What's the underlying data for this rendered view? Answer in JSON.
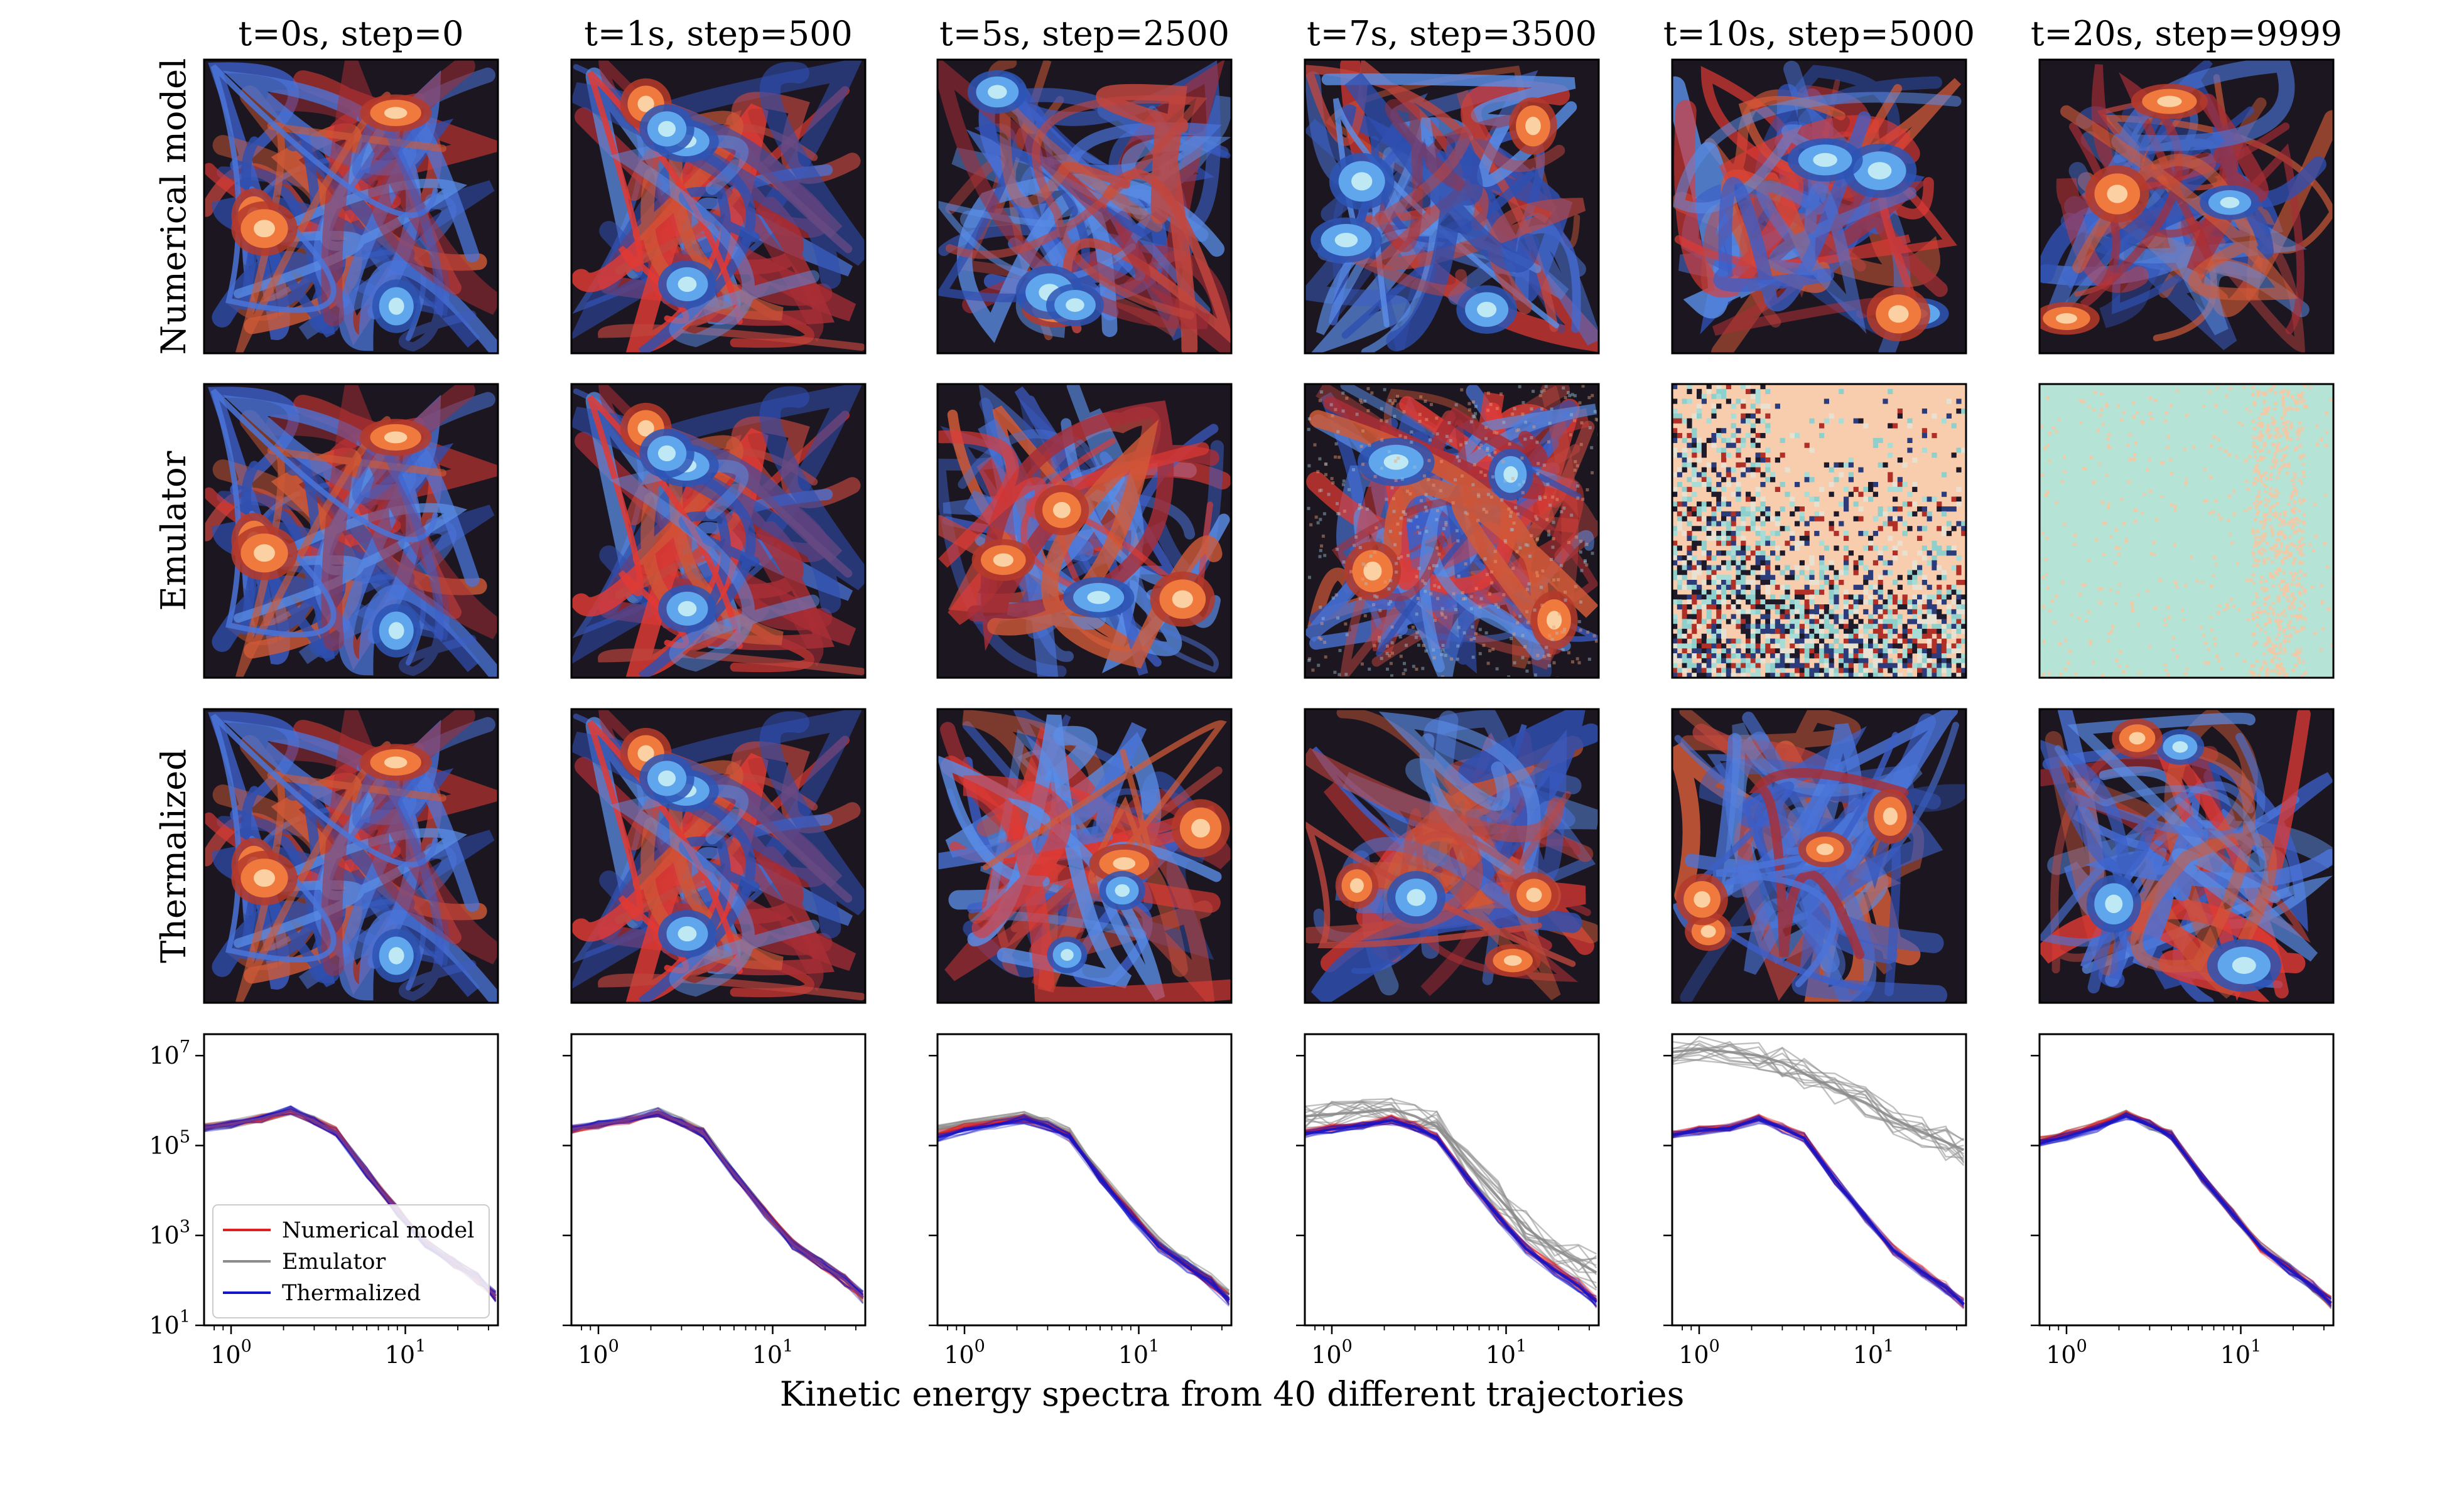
{
  "figure": {
    "xlabel": "Kinetic energy spectra from 40 different trajectories",
    "column_titles": [
      "t=0s, step=0",
      "t=1s, step=500",
      "t=5s, step=2500",
      "t=7s, step=3500",
      "t=10s, step=5000",
      "t=20s, step=9999"
    ],
    "row_labels": [
      "Numerical model",
      "Emulator",
      "Thermalized"
    ],
    "colors": {
      "numerical": "#e02020",
      "emulator": "#8c8c8c",
      "thermalized": "#1515c8",
      "overlap": "#7a3a8c"
    }
  },
  "chart_data": {
    "type": "line",
    "xscale": "log",
    "yscale": "log",
    "xlim": [
      0.7,
      34
    ],
    "ylim": [
      10,
      30000000
    ],
    "xticks": [
      {
        "v": 1,
        "b": "10",
        "e": "0"
      },
      {
        "v": 10,
        "b": "10",
        "e": "1"
      }
    ],
    "yticks": [
      {
        "v": 10,
        "b": "10",
        "e": "1"
      },
      {
        "v": 1000,
        "b": "10",
        "e": "3"
      },
      {
        "v": 100000,
        "b": "10",
        "e": "5"
      },
      {
        "v": 10000000,
        "b": "10",
        "e": "7"
      }
    ],
    "legend": {
      "position": "lower-left",
      "entries": [
        {
          "label": "Numerical model",
          "color": "#e02020"
        },
        {
          "label": "Emulator",
          "color": "#8c8c8c"
        },
        {
          "label": "Thermalized",
          "color": "#1515c8"
        }
      ]
    },
    "k": [
      0.7,
      1,
      1.5,
      2.2,
      3,
      4,
      6,
      9,
      13,
      19,
      26,
      33
    ],
    "panels": [
      {
        "title": "t=0s, step=0",
        "series": [
          {
            "name": "Numerical model",
            "values": [
              250000,
              300000,
              400000,
              600000,
              350000,
              200000,
              25000,
              3500,
              700,
              250,
              110,
              45
            ]
          },
          {
            "name": "Emulator",
            "values": [
              250000,
              300000,
              400000,
              600000,
              350000,
              200000,
              25000,
              3500,
              700,
              250,
              110,
              45
            ]
          },
          {
            "name": "Thermalized",
            "values": [
              250000,
              300000,
              400000,
              600000,
              350000,
              200000,
              25000,
              3500,
              700,
              250,
              110,
              45
            ]
          }
        ]
      },
      {
        "title": "t=1s, step=500",
        "series": [
          {
            "name": "Numerical model",
            "values": [
              230000,
              290000,
              380000,
              550000,
              330000,
              190000,
              23000,
              3300,
              650,
              230,
              100,
              42
            ]
          },
          {
            "name": "Emulator",
            "values": [
              230000,
              290000,
              380000,
              550000,
              330000,
              190000,
              23000,
              3300,
              650,
              230,
              100,
              42
            ]
          },
          {
            "name": "Thermalized",
            "values": [
              230000,
              290000,
              380000,
              550000,
              330000,
              190000,
              23000,
              3300,
              650,
              230,
              100,
              42
            ]
          }
        ]
      },
      {
        "title": "t=5s, step=2500",
        "series": [
          {
            "name": "Numerical model",
            "values": [
              180000,
              250000,
              320000,
              400000,
              280000,
              160000,
              20000,
              3000,
              600,
              210,
              90,
              38
            ]
          },
          {
            "name": "Emulator",
            "values": [
              230000,
              300000,
              370000,
              480000,
              330000,
              190000,
              24000,
              3500,
              700,
              250,
              110,
              48
            ]
          },
          {
            "name": "Thermalized",
            "values": [
              150000,
              220000,
              290000,
              380000,
              270000,
              150000,
              19000,
              2800,
              560,
              200,
              85,
              36
            ]
          }
        ]
      },
      {
        "title": "t=7s, step=3500",
        "series": [
          {
            "name": "Numerical model",
            "values": [
              200000,
              250000,
              300000,
              380000,
              270000,
              150000,
              18000,
              2700,
              520,
              180,
              80,
              35
            ]
          },
          {
            "name": "Emulator",
            "values": [
              450000,
              500000,
              550000,
              650000,
              450000,
              260000,
              40000,
              7000,
              1500,
              500,
              250,
              150
            ]
          },
          {
            "name": "Thermalized",
            "values": [
              180000,
              230000,
              280000,
              360000,
              260000,
              150000,
              18000,
              2600,
              500,
              170,
              75,
              33
            ]
          }
        ]
      },
      {
        "title": "t=10s, step=5000",
        "series": [
          {
            "name": "Numerical model",
            "values": [
              180000,
              220000,
              260000,
              400000,
              250000,
              150000,
              18000,
              2500,
              480,
              160,
              70,
              30
            ]
          },
          {
            "name": "Emulator",
            "values": [
              12000000,
              14000000,
              12000000,
              10000000,
              7000000,
              4000000,
              1800000,
              900000,
              400000,
              200000,
              120000,
              80000
            ]
          },
          {
            "name": "Thermalized",
            "values": [
              170000,
              210000,
              250000,
              380000,
              240000,
              145000,
              17500,
              2450,
              470,
              155,
              68,
              29
            ]
          }
        ]
      },
      {
        "title": "t=20s, step=9999",
        "series": [
          {
            "name": "Numerical model",
            "values": [
              130000,
              180000,
              280000,
              500000,
              300000,
              170000,
              20000,
              3000,
              550,
              180,
              75,
              32
            ]
          },
          {
            "name": "Emulator",
            "values": [
              130000,
              180000,
              280000,
              500000,
              300000,
              170000,
              20000,
              3000,
              550,
              180,
              75,
              32
            ]
          },
          {
            "name": "Thermalized",
            "values": [
              110000,
              160000,
              250000,
              450000,
              280000,
              160000,
              19000,
              2900,
              530,
              175,
              72,
              31
            ]
          }
        ]
      }
    ]
  }
}
